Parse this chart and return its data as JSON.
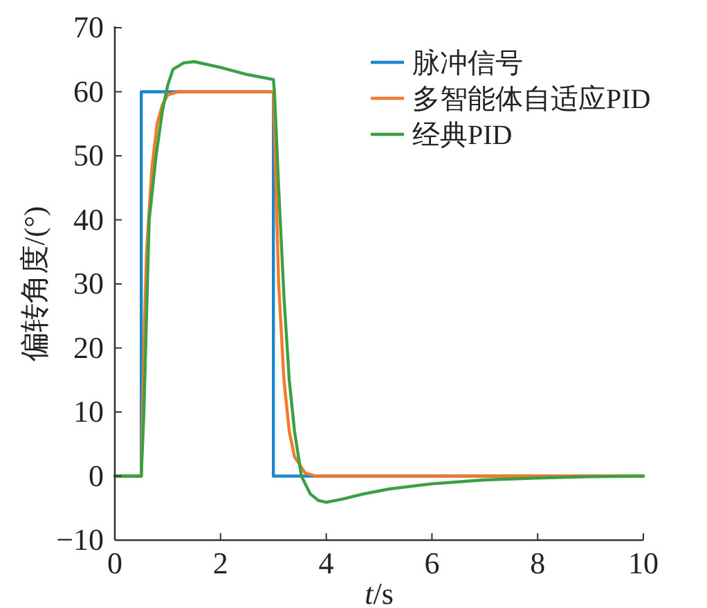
{
  "chart_data": {
    "type": "line",
    "xlabel": "*t*/s",
    "ylabel": "偏转角度/(°)",
    "xlim": [
      0,
      10
    ],
    "ylim": [
      -10,
      70
    ],
    "xticks": [
      0,
      2,
      4,
      6,
      8,
      10
    ],
    "yticks": [
      -10,
      0,
      10,
      20,
      30,
      40,
      50,
      60,
      70
    ],
    "grid": false,
    "legend": "top right",
    "line_style": "solid",
    "marker": "none",
    "series": [
      {
        "name": "脉冲信号",
        "color": "#1a88c9",
        "x": [
          0,
          0.5,
          0.5,
          3.0,
          3.0,
          10
        ],
        "values": [
          0,
          0,
          60,
          60,
          0,
          0
        ]
      },
      {
        "name": "多智能体自适应PID",
        "color": "#f47a2a",
        "x": [
          0,
          0.5,
          0.55,
          0.6,
          0.7,
          0.8,
          0.9,
          1.0,
          1.2,
          3.0,
          3.05,
          3.1,
          3.2,
          3.3,
          3.4,
          3.6,
          3.8,
          10
        ],
        "values": [
          0,
          0,
          20,
          35,
          48,
          55,
          58,
          59.5,
          60,
          60,
          45,
          30,
          15,
          7,
          3,
          0.5,
          0,
          0
        ]
      },
      {
        "name": "经典PID",
        "color": "#3aa043",
        "x": [
          0,
          0.5,
          0.55,
          0.6,
          0.65,
          0.78,
          0.9,
          1.0,
          1.1,
          1.3,
          1.5,
          2.0,
          2.5,
          3.0,
          3.02,
          3.1,
          3.2,
          3.3,
          3.4,
          3.53,
          3.7,
          3.85,
          4.0,
          4.3,
          4.7,
          5.2,
          6,
          7,
          8,
          9,
          10
        ],
        "values": [
          0,
          0,
          10,
          25,
          40,
          50,
          57,
          61,
          63.5,
          64.5,
          64.7,
          63.8,
          62.7,
          61.9,
          60,
          45,
          28,
          15,
          7,
          0,
          -2.8,
          -3.8,
          -4.1,
          -3.6,
          -2.8,
          -2,
          -1.2,
          -0.6,
          -0.3,
          -0.1,
          0
        ]
      }
    ]
  }
}
